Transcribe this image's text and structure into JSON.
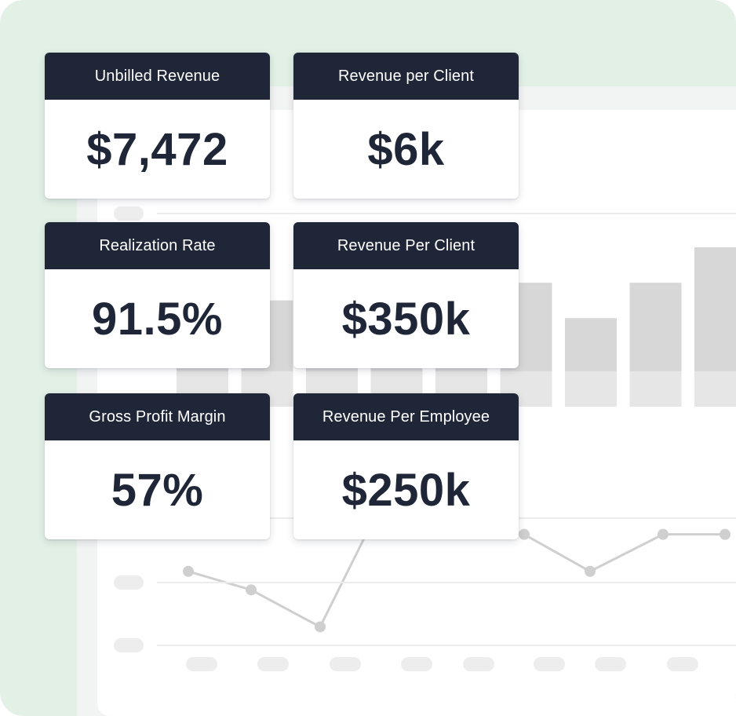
{
  "colors": {
    "frame_bg": "#e2f0e6",
    "card_header": "#1f2637",
    "card_value_text": "#1f2637",
    "chart_gray": "#d7d7d7",
    "line_gray": "#cfcfcf"
  },
  "kpis": [
    {
      "label": "Unbilled Revenue",
      "value": "$7,472"
    },
    {
      "label": "Revenue per Client",
      "value": "$6k"
    },
    {
      "label": "Realization Rate",
      "value": "91.5%"
    },
    {
      "label": "Revenue Per Client",
      "value": "$350k"
    },
    {
      "label": "Gross Profit Margin",
      "value": "57%"
    },
    {
      "label": "Revenue Per Employee",
      "value": "$250k"
    }
  ],
  "background_charts": {
    "bar_values": [
      5,
      6,
      6,
      6,
      6,
      7,
      5,
      7,
      9
    ],
    "bar_stack_lower": [
      2,
      2,
      2,
      2,
      2,
      2,
      2,
      2,
      2
    ],
    "line_values": [
      4,
      3,
      1,
      8,
      7,
      6,
      4,
      6,
      6
    ],
    "line_max": 9
  }
}
